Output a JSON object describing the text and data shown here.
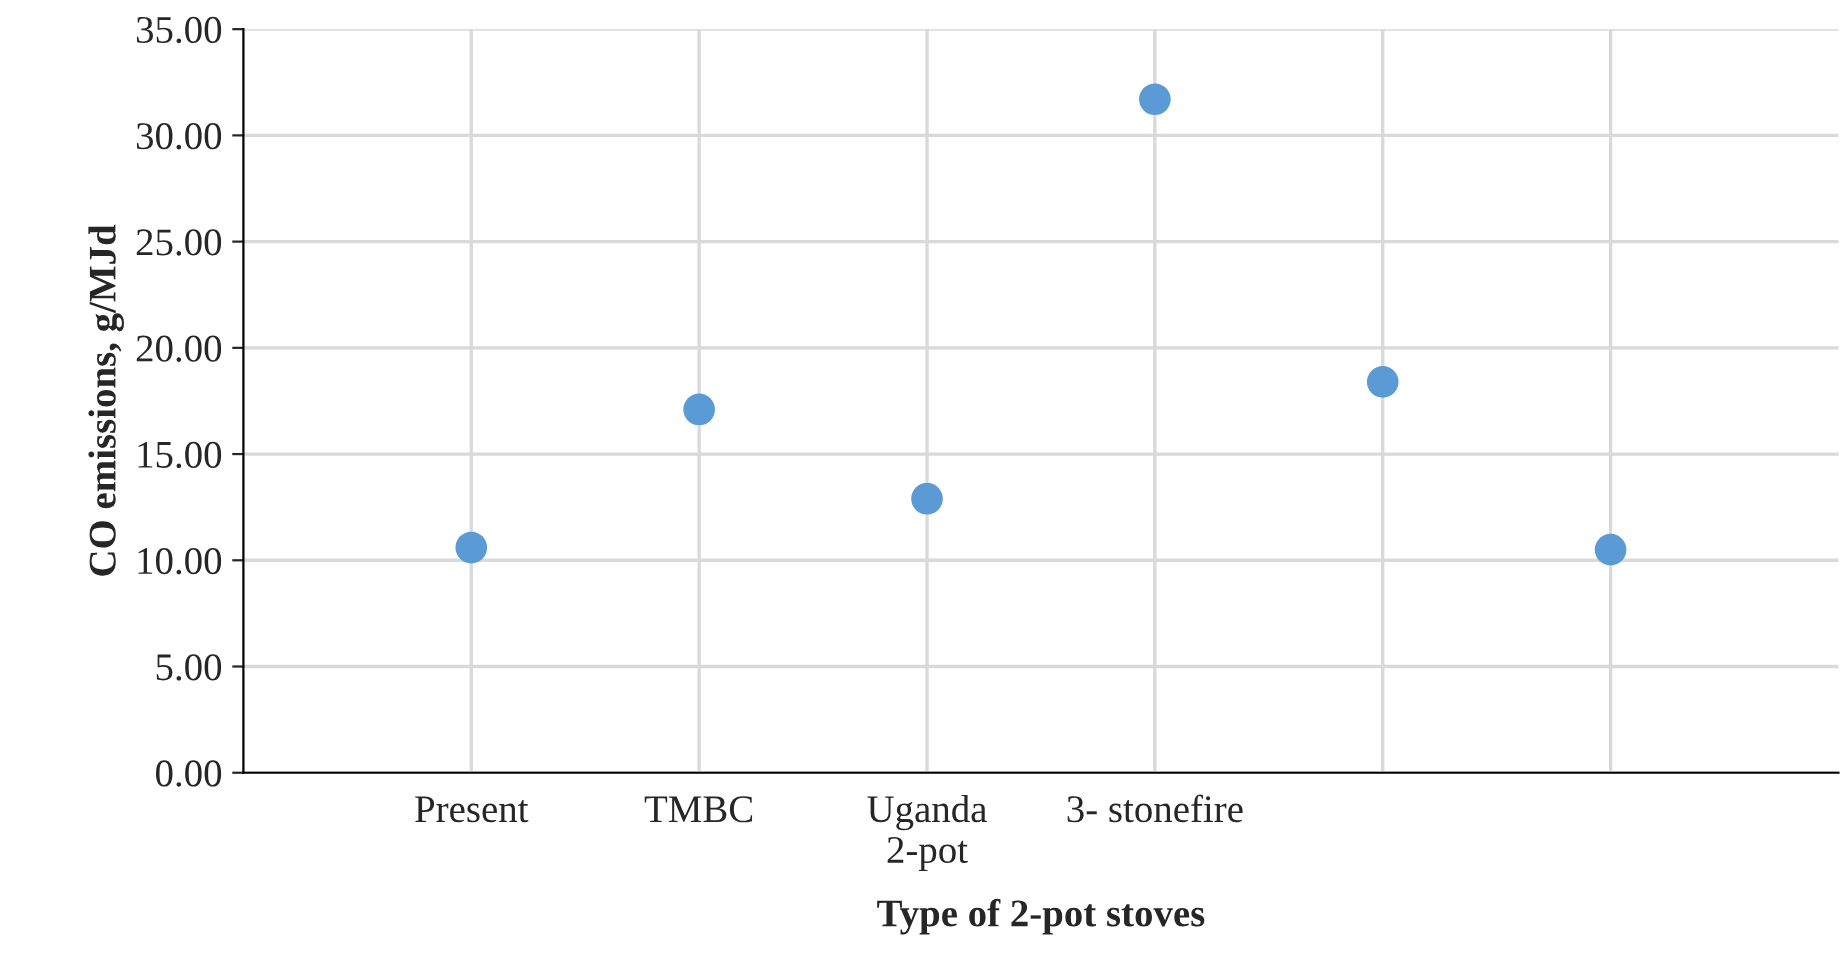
{
  "chart_data": {
    "type": "scatter",
    "xlabel": "Type of 2-pot stoves",
    "ylabel": "CO emissions, g/MJd",
    "categories": [
      "Present",
      "TMBC",
      "Uganda\n2-pot",
      "3- stonefire",
      null,
      null
    ],
    "series": [
      {
        "color": "#5b9bd5",
        "values": [
          10.6,
          17.1,
          12.9,
          31.7,
          18.4,
          10.5
        ]
      }
    ],
    "ylim": [
      0,
      35
    ],
    "yticks": [
      {
        "value": 0,
        "label": "0.00"
      },
      {
        "value": 5,
        "label": "5.00"
      },
      {
        "value": 10,
        "label": "10.00"
      },
      {
        "value": 15,
        "label": "15.00"
      },
      {
        "value": 20,
        "label": "20.00"
      },
      {
        "value": 25,
        "label": "25.00"
      },
      {
        "value": 30,
        "label": "30.00"
      },
      {
        "value": 35,
        "label": "35.00"
      }
    ],
    "grid": true,
    "marker": "circle"
  }
}
